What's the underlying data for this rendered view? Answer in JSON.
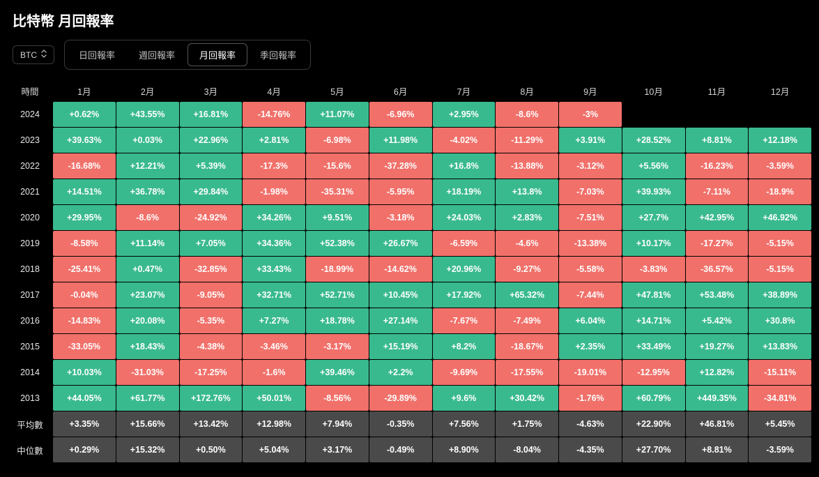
{
  "title": "比特幣 月回報率",
  "selector": {
    "value": "BTC"
  },
  "tabs": {
    "items": [
      "日回報率",
      "週回報率",
      "月回報率",
      "季回報率"
    ],
    "active_index": 2
  },
  "table": {
    "type": "heatmap-table",
    "corner_label": "時間",
    "months": [
      "1月",
      "2月",
      "3月",
      "4月",
      "5月",
      "6月",
      "7月",
      "8月",
      "9月",
      "10月",
      "11月",
      "12月"
    ],
    "colors": {
      "positive": "#39ba8e",
      "negative": "#f1706a",
      "summary": "#4a4a4a",
      "background": "#000000",
      "text": "#ffffff"
    },
    "cell_font_size_pt": 9,
    "cell_font_weight": 600,
    "rows": [
      {
        "label": "2024",
        "values": [
          0.62,
          43.55,
          16.81,
          -14.76,
          11.07,
          -6.96,
          2.95,
          -8.6,
          -3,
          null,
          null,
          null
        ]
      },
      {
        "label": "2023",
        "values": [
          39.63,
          0.03,
          22.96,
          2.81,
          -6.98,
          11.98,
          -4.02,
          -11.29,
          3.91,
          28.52,
          8.81,
          12.18
        ]
      },
      {
        "label": "2022",
        "values": [
          -16.68,
          12.21,
          5.39,
          -17.3,
          -15.6,
          -37.28,
          16.8,
          -13.88,
          -3.12,
          5.56,
          -16.23,
          -3.59
        ]
      },
      {
        "label": "2021",
        "values": [
          14.51,
          36.78,
          29.84,
          -1.98,
          -35.31,
          -5.95,
          18.19,
          13.8,
          -7.03,
          39.93,
          -7.11,
          -18.9
        ]
      },
      {
        "label": "2020",
        "values": [
          29.95,
          -8.6,
          -24.92,
          34.26,
          9.51,
          -3.18,
          24.03,
          2.83,
          -7.51,
          27.7,
          42.95,
          46.92
        ]
      },
      {
        "label": "2019",
        "values": [
          -8.58,
          11.14,
          7.05,
          34.36,
          52.38,
          26.67,
          -6.59,
          -4.6,
          -13.38,
          10.17,
          -17.27,
          -5.15
        ]
      },
      {
        "label": "2018",
        "values": [
          -25.41,
          0.47,
          -32.85,
          33.43,
          -18.99,
          -14.62,
          20.96,
          -9.27,
          -5.58,
          -3.83,
          -36.57,
          -5.15
        ]
      },
      {
        "label": "2017",
        "values": [
          -0.04,
          23.07,
          -9.05,
          32.71,
          52.71,
          10.45,
          17.92,
          65.32,
          -7.44,
          47.81,
          53.48,
          38.89
        ]
      },
      {
        "label": "2016",
        "values": [
          -14.83,
          20.08,
          -5.35,
          7.27,
          18.78,
          27.14,
          -7.67,
          -7.49,
          6.04,
          14.71,
          5.42,
          30.8
        ]
      },
      {
        "label": "2015",
        "values": [
          -33.05,
          18.43,
          -4.38,
          -3.46,
          -3.17,
          15.19,
          8.2,
          -18.67,
          2.35,
          33.49,
          19.27,
          13.83
        ]
      },
      {
        "label": "2014",
        "values": [
          10.03,
          -31.03,
          -17.25,
          -1.6,
          39.46,
          2.2,
          -9.69,
          -17.55,
          -19.01,
          -12.95,
          12.82,
          -15.11
        ]
      },
      {
        "label": "2013",
        "values": [
          44.05,
          61.77,
          172.76,
          50.01,
          -8.56,
          -29.89,
          9.6,
          30.42,
          -1.76,
          60.79,
          449.35,
          -34.81
        ]
      }
    ],
    "summary_rows": [
      {
        "label": "平均數",
        "values": [
          3.35,
          15.66,
          13.42,
          12.98,
          7.94,
          -0.35,
          7.56,
          1.75,
          -4.63,
          22.9,
          46.81,
          5.45
        ]
      },
      {
        "label": "中位數",
        "values": [
          0.29,
          15.32,
          0.5,
          5.04,
          3.17,
          -0.49,
          8.9,
          -8.04,
          -4.35,
          27.7,
          8.81,
          -3.59
        ]
      }
    ]
  }
}
